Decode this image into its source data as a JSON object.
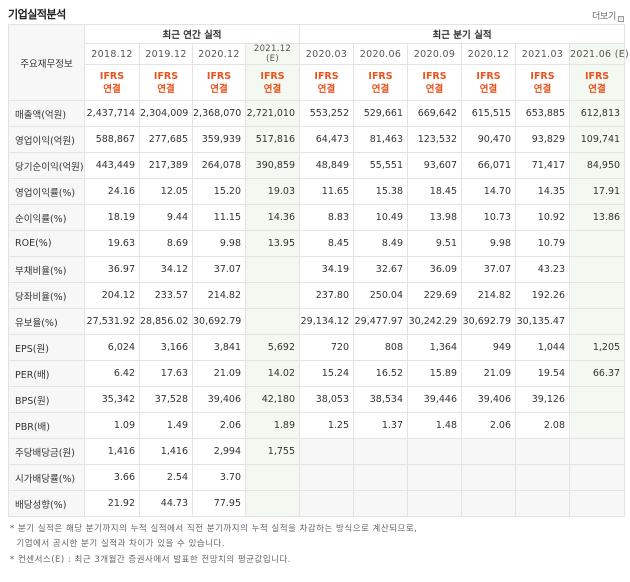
{
  "title": "기업실적분석",
  "more_label": "더보기",
  "corner_label": "주요재무정보",
  "groups": {
    "annual": "최근 연간 실적",
    "quarter": "최근 분기 실적"
  },
  "periods": [
    "2018.12",
    "2019.12",
    "2020.12",
    "2021.12\n(E)",
    "2020.03",
    "2020.06",
    "2020.09",
    "2020.12",
    "2021.03",
    "2021.06 (E)"
  ],
  "std_line1": "IFRS",
  "std_line2": "연결",
  "rows": [
    {
      "label": "매출액(억원)",
      "values": [
        "2,437,714",
        "2,304,009",
        "2,368,070",
        "2,721,010",
        "553,252",
        "529,661",
        "669,642",
        "615,515",
        "653,885",
        "612,813"
      ]
    },
    {
      "label": "영업이익(억원)",
      "values": [
        "588,867",
        "277,685",
        "359,939",
        "517,816",
        "64,473",
        "81,463",
        "123,532",
        "90,470",
        "93,829",
        "109,741"
      ]
    },
    {
      "label": "당기순이익(억원)",
      "values": [
        "443,449",
        "217,389",
        "264,078",
        "390,859",
        "48,849",
        "55,551",
        "93,607",
        "66,071",
        "71,417",
        "84,950"
      ]
    },
    {
      "label": "영업이익률(%)",
      "values": [
        "24.16",
        "12.05",
        "15.20",
        "19.03",
        "11.65",
        "15.38",
        "18.45",
        "14.70",
        "14.35",
        "17.91"
      ]
    },
    {
      "label": "순이익률(%)",
      "values": [
        "18.19",
        "9.44",
        "11.15",
        "14.36",
        "8.83",
        "10.49",
        "13.98",
        "10.73",
        "10.92",
        "13.86"
      ]
    },
    {
      "label": "ROE(%)",
      "values": [
        "19.63",
        "8.69",
        "9.98",
        "13.95",
        "8.45",
        "8.49",
        "9.51",
        "9.98",
        "10.79",
        ""
      ]
    },
    {
      "label": "부채비율(%)",
      "values": [
        "36.97",
        "34.12",
        "37.07",
        "",
        "34.19",
        "32.67",
        "36.09",
        "37.07",
        "43.23",
        ""
      ]
    },
    {
      "label": "당좌비율(%)",
      "values": [
        "204.12",
        "233.57",
        "214.82",
        "",
        "237.80",
        "250.04",
        "229.69",
        "214.82",
        "192.26",
        ""
      ]
    },
    {
      "label": "유보율(%)",
      "values": [
        "27,531.92",
        "28,856.02",
        "30,692.79",
        "",
        "29,134.12",
        "29,477.97",
        "30,242.29",
        "30,692.79",
        "30,135.47",
        ""
      ]
    },
    {
      "label": "EPS(원)",
      "values": [
        "6,024",
        "3,166",
        "3,841",
        "5,692",
        "720",
        "808",
        "1,364",
        "949",
        "1,044",
        "1,205"
      ]
    },
    {
      "label": "PER(배)",
      "values": [
        "6.42",
        "17.63",
        "21.09",
        "14.02",
        "15.24",
        "16.52",
        "15.89",
        "21.09",
        "19.54",
        "66.37"
      ]
    },
    {
      "label": "BPS(원)",
      "values": [
        "35,342",
        "37,528",
        "39,406",
        "42,180",
        "38,053",
        "38,534",
        "39,446",
        "39,406",
        "39,126",
        ""
      ]
    },
    {
      "label": "PBR(배)",
      "values": [
        "1.09",
        "1.49",
        "2.06",
        "1.89",
        "1.25",
        "1.37",
        "1.48",
        "2.06",
        "2.08",
        ""
      ]
    },
    {
      "label": "주당배당금(원)",
      "values": [
        "1,416",
        "1,416",
        "2,994",
        "1,755",
        "",
        "",
        "",
        "",
        "",
        ""
      ]
    },
    {
      "label": "시가배당률(%)",
      "values": [
        "3.66",
        "2.54",
        "3.70",
        "",
        "",
        "",
        "",
        "",
        "",
        ""
      ]
    },
    {
      "label": "배당성향(%)",
      "values": [
        "21.92",
        "44.73",
        "77.95",
        "",
        "",
        "",
        "",
        "",
        "",
        ""
      ]
    }
  ],
  "footnotes": [
    "* 분기 실적은 해당 분기까지의 누적 실적에서 직전 분기까지의 누적 실적을 차감하는 방식으로 계산되므로,",
    "  기업에서 공시한 분기 실적과 차이가 있을 수 있습니다.",
    "* 컨센서스(E) : 최근 3개월간 증권사에서 발표한 전망치의 평균값입니다."
  ],
  "colors": {
    "ifrs": "#e9531f",
    "estimate_bg": "#f3f8f1",
    "header_bg": "#f7f7f7"
  }
}
